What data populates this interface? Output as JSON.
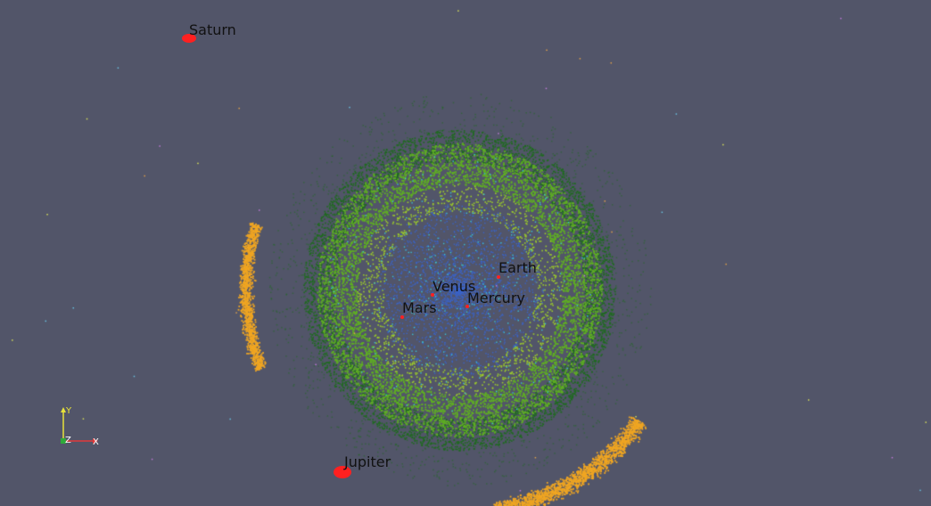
{
  "scene": {
    "background_color": "#525569",
    "planets": [
      {
        "id": "saturn",
        "label": "Saturn"
      },
      {
        "id": "jupiter",
        "label": "Jupiter"
      },
      {
        "id": "earth",
        "label": "Earth"
      },
      {
        "id": "venus",
        "label": "Venus"
      },
      {
        "id": "mercury",
        "label": "Mercury"
      },
      {
        "id": "mars",
        "label": "Mars"
      }
    ],
    "planet_marker_color": "#ff2020",
    "particle_colors": {
      "outer_belt": "#1f6b1f",
      "middle_belt": "#5fae23",
      "inner_ring": "#9ccb2a",
      "core": "#3a63c8",
      "cyan": "#37c3d8",
      "trojans": "#f0a622"
    }
  },
  "axes": {
    "x_label": "X",
    "y_label": "Y",
    "z_label": "Z",
    "x_color": "#e23a3a",
    "y_color": "#e8e23a",
    "z_color": "#2faa3a"
  }
}
